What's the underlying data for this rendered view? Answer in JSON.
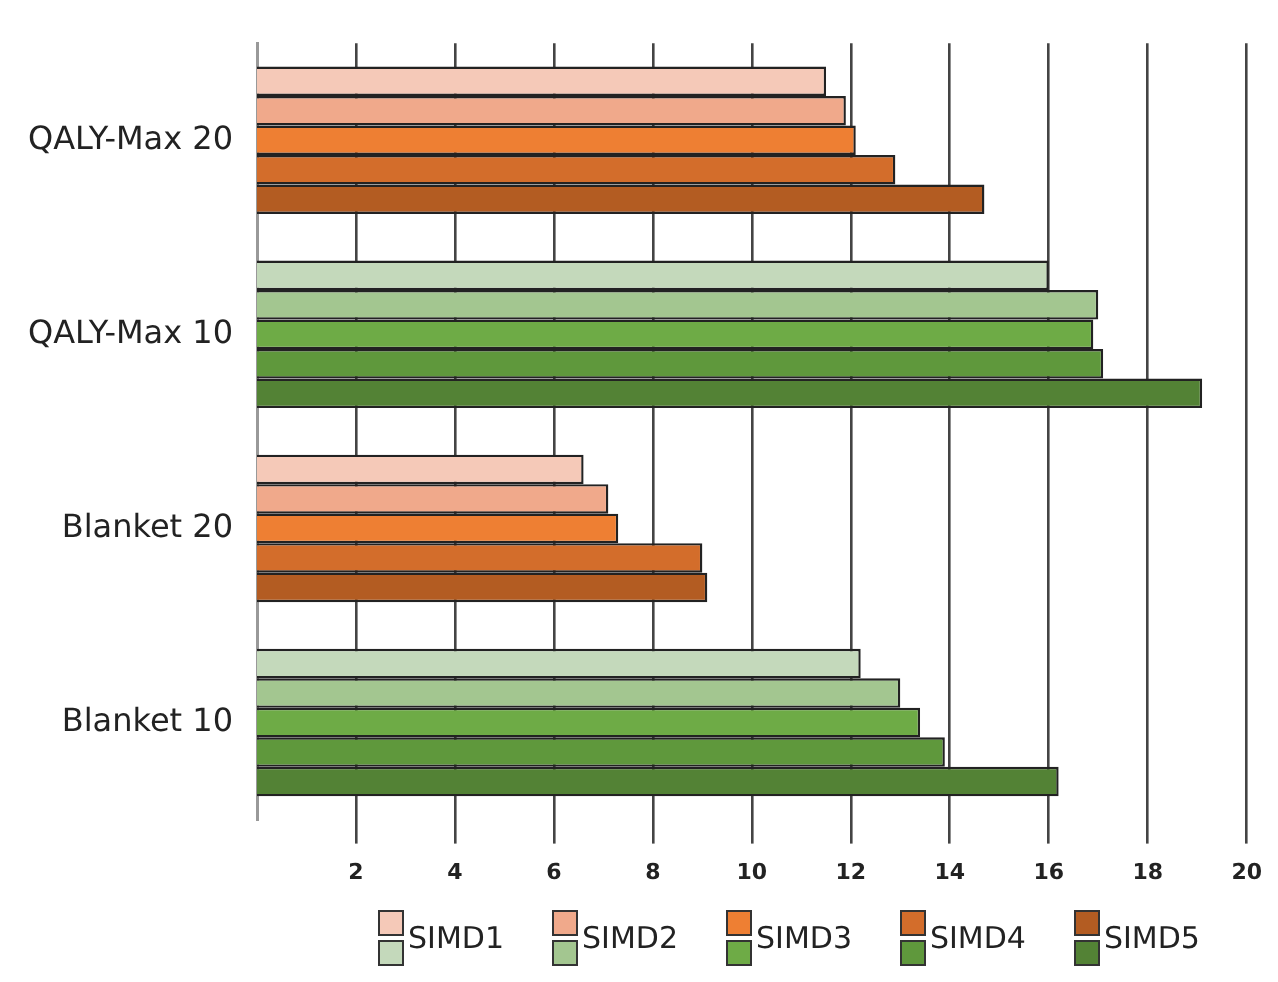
{
  "chart_data": {
    "type": "bar",
    "orientation": "horizontal",
    "categories": [
      "QALY-Max 20",
      "QALY-Max 10",
      "Blanket 20",
      "Blanket 10"
    ],
    "series": [
      {
        "name": "SIMD1",
        "colors": [
          "#f5c9b8",
          "#c4d9bb",
          "#f5c9b8",
          "#c4d9bb"
        ],
        "values": [
          11.5,
          16.0,
          6.6,
          12.2
        ]
      },
      {
        "name": "SIMD2",
        "colors": [
          "#f0a98b",
          "#a3c690",
          "#f0a98b",
          "#a3c690"
        ],
        "values": [
          11.9,
          17.0,
          7.1,
          13.0
        ]
      },
      {
        "name": "SIMD3",
        "colors": [
          "#ee7f33",
          "#6eab46",
          "#ee7f33",
          "#6eab46"
        ],
        "values": [
          12.1,
          16.9,
          7.3,
          13.4
        ]
      },
      {
        "name": "SIMD4",
        "colors": [
          "#d36d2b",
          "#5f983c",
          "#d36d2b",
          "#5f983c"
        ],
        "values": [
          12.9,
          17.1,
          9.0,
          13.9
        ]
      },
      {
        "name": "SIMD5",
        "colors": [
          "#b35c22",
          "#538235",
          "#b35c22",
          "#538235"
        ],
        "values": [
          14.7,
          19.1,
          9.1,
          16.2
        ]
      }
    ],
    "xlim": [
      0,
      20
    ],
    "xticks": [
      2,
      4,
      6,
      8,
      10,
      12,
      14,
      16,
      18,
      20
    ],
    "grid": "x",
    "legend": "bottom"
  }
}
